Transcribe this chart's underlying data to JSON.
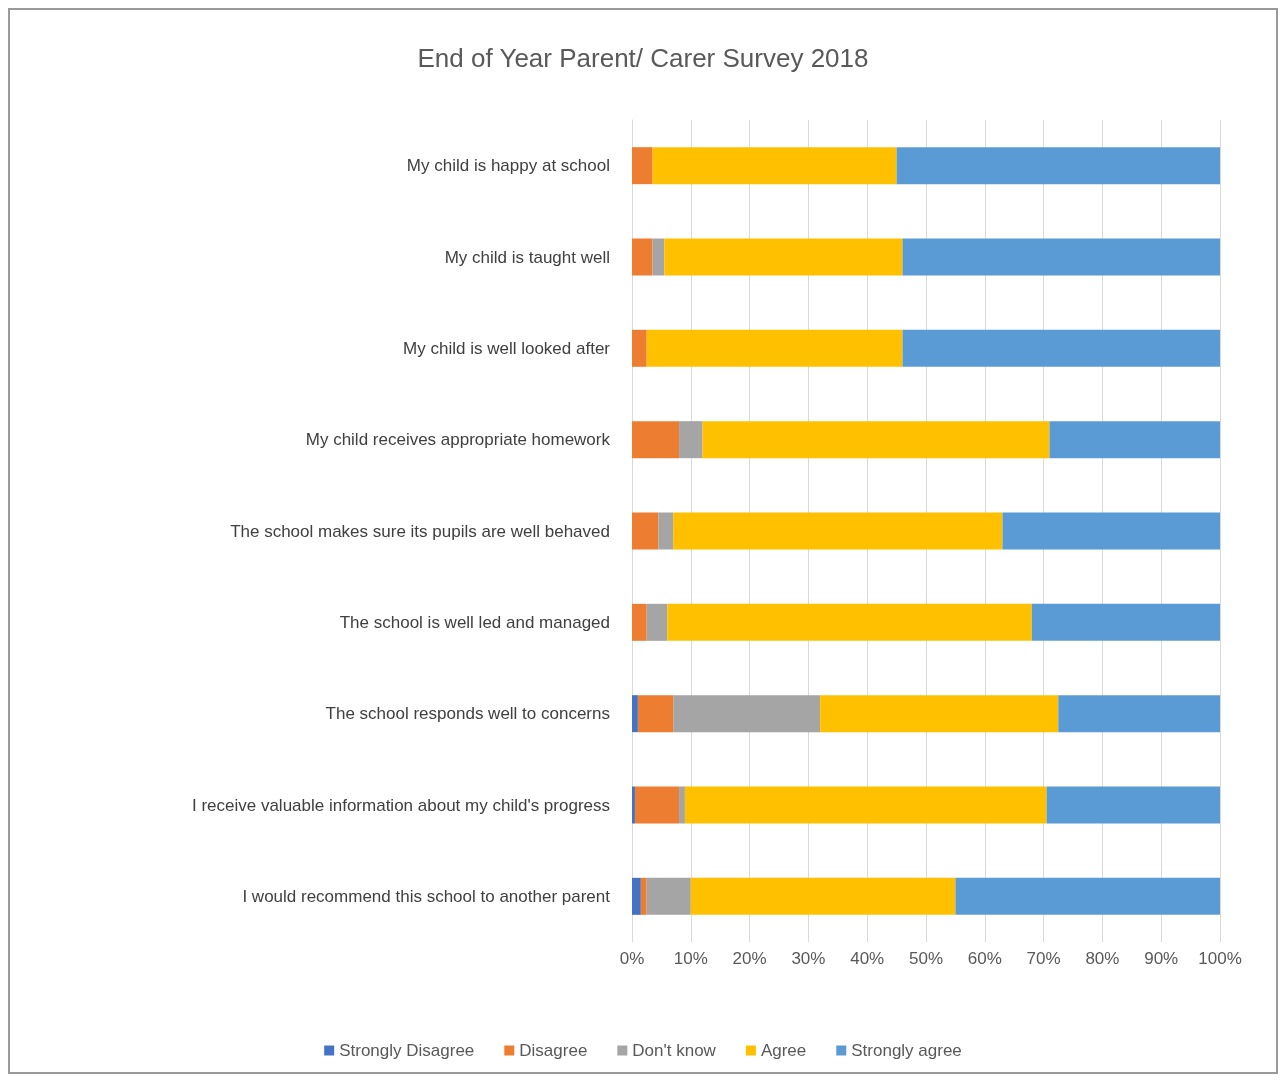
{
  "chart_data": {
    "type": "bar",
    "title": "End of Year Parent/ Carer Survey 2018",
    "orientation": "horizontal",
    "stacked": true,
    "categories": [
      "My child is happy at school",
      "My child is taught well",
      "My child is well looked after",
      "My child receives appropriate homework",
      "The school makes sure its pupils are well behaved",
      "The school is well led and managed",
      "The school responds well to concerns",
      "I receive valuable information about my child's progress",
      "I would recommend this school to another parent"
    ],
    "series": [
      {
        "name": "Strongly Disagree",
        "color": "#4472c4",
        "values": [
          0,
          0,
          0,
          0,
          0,
          0,
          1,
          0.5,
          1.5
        ]
      },
      {
        "name": "Disagree",
        "color": "#ed7d31",
        "values": [
          3.5,
          3.5,
          2.5,
          8,
          4.5,
          2.5,
          6,
          7.5,
          1
        ]
      },
      {
        "name": "Don't know",
        "color": "#a5a5a5",
        "values": [
          0,
          2,
          0,
          4,
          2.5,
          3.5,
          25,
          1,
          7.5
        ]
      },
      {
        "name": "Agree",
        "color": "#ffc000",
        "values": [
          41.5,
          40.5,
          43.5,
          59,
          56,
          62,
          40.5,
          61.5,
          45
        ]
      },
      {
        "name": "Strongly agree",
        "color": "#5b9bd5",
        "values": [
          55,
          54,
          54,
          29,
          37,
          32,
          27.5,
          29.5,
          45
        ]
      }
    ],
    "xlim": [
      0,
      100
    ],
    "xticks": [
      {
        "value": 0,
        "label": "0%"
      },
      {
        "value": 10,
        "label": "10%"
      },
      {
        "value": 20,
        "label": "20%"
      },
      {
        "value": 30,
        "label": "30%"
      },
      {
        "value": 40,
        "label": "40%"
      },
      {
        "value": 50,
        "label": "50%"
      },
      {
        "value": 60,
        "label": "60%"
      },
      {
        "value": 70,
        "label": "70%"
      },
      {
        "value": 80,
        "label": "80%"
      },
      {
        "value": 90,
        "label": "90%"
      },
      {
        "value": 100,
        "label": "100%"
      }
    ],
    "grid": "x",
    "legend": "bottom"
  }
}
